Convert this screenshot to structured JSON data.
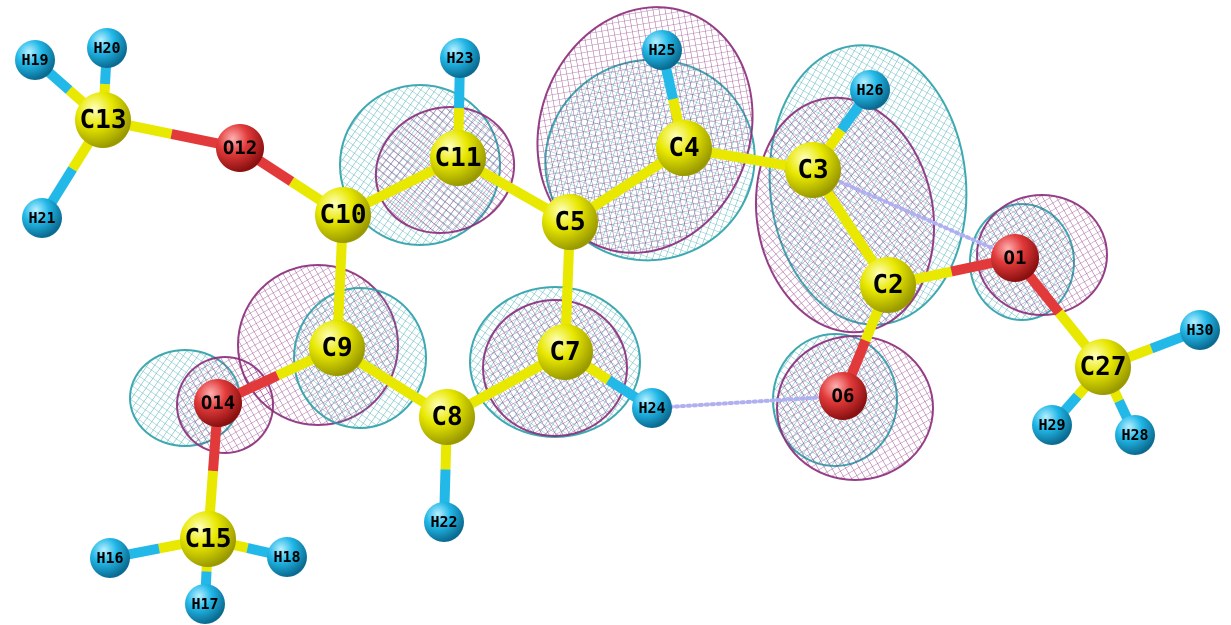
{
  "colors": {
    "background": "#ffffff",
    "carbon": "#e8e800",
    "oxygen": "#e23a3a",
    "hydrogen": "#22b8e8",
    "bond": "#e8e800",
    "lobe_positive": "#2aa0a8",
    "lobe_negative": "#8a2a7a",
    "hbond": "#b0b0f0"
  },
  "atoms": [
    {
      "id": "C13",
      "label": "C13",
      "element": "C"
    },
    {
      "id": "H19",
      "label": "H19",
      "element": "H"
    },
    {
      "id": "H20",
      "label": "H20",
      "element": "H"
    },
    {
      "id": "H21",
      "label": "H21",
      "element": "H"
    },
    {
      "id": "O12",
      "label": "O12",
      "element": "O"
    },
    {
      "id": "C10",
      "label": "C10",
      "element": "C"
    },
    {
      "id": "C11",
      "label": "C11",
      "element": "C"
    },
    {
      "id": "H23",
      "label": "H23",
      "element": "H"
    },
    {
      "id": "C5",
      "label": "C5",
      "element": "C"
    },
    {
      "id": "C4",
      "label": "C4",
      "element": "C"
    },
    {
      "id": "H25",
      "label": "H25",
      "element": "H"
    },
    {
      "id": "C3",
      "label": "C3",
      "element": "C"
    },
    {
      "id": "H26",
      "label": "H26",
      "element": "H"
    },
    {
      "id": "C2",
      "label": "C2",
      "element": "C"
    },
    {
      "id": "O1",
      "label": "O1",
      "element": "O"
    },
    {
      "id": "C27",
      "label": "C27",
      "element": "C"
    },
    {
      "id": "H30",
      "label": "H30",
      "element": "H"
    },
    {
      "id": "H29",
      "label": "H29",
      "element": "H"
    },
    {
      "id": "H28",
      "label": "H28",
      "element": "H"
    },
    {
      "id": "O6",
      "label": "O6",
      "element": "O"
    },
    {
      "id": "C7",
      "label": "C7",
      "element": "C"
    },
    {
      "id": "H24",
      "label": "H24",
      "element": "H"
    },
    {
      "id": "C8",
      "label": "C8",
      "element": "C"
    },
    {
      "id": "H22",
      "label": "H22",
      "element": "H"
    },
    {
      "id": "C9",
      "label": "C9",
      "element": "C"
    },
    {
      "id": "O14",
      "label": "O14",
      "element": "O"
    },
    {
      "id": "C15",
      "label": "C15",
      "element": "C"
    },
    {
      "id": "H16",
      "label": "H16",
      "element": "H"
    },
    {
      "id": "H17",
      "label": "H17",
      "element": "H"
    },
    {
      "id": "H18",
      "label": "H18",
      "element": "H"
    }
  ],
  "bonds": [
    [
      "C13",
      "H19"
    ],
    [
      "C13",
      "H20"
    ],
    [
      "C13",
      "H21"
    ],
    [
      "C13",
      "O12"
    ],
    [
      "O12",
      "C10"
    ],
    [
      "C10",
      "C11"
    ],
    [
      "C11",
      "H23"
    ],
    [
      "C11",
      "C5"
    ],
    [
      "C5",
      "C4"
    ],
    [
      "C4",
      "H25"
    ],
    [
      "C4",
      "C3"
    ],
    [
      "C3",
      "H26"
    ],
    [
      "C3",
      "C2"
    ],
    [
      "C2",
      "O1"
    ],
    [
      "O1",
      "C27"
    ],
    [
      "C27",
      "H30"
    ],
    [
      "C27",
      "H29"
    ],
    [
      "C27",
      "H28"
    ],
    [
      "C2",
      "O6"
    ],
    [
      "C5",
      "C7"
    ],
    [
      "C7",
      "H24"
    ],
    [
      "C7",
      "C8"
    ],
    [
      "C8",
      "H22"
    ],
    [
      "C8",
      "C9"
    ],
    [
      "C9",
      "C10"
    ],
    [
      "C9",
      "O14"
    ],
    [
      "O14",
      "C15"
    ],
    [
      "C15",
      "H16"
    ],
    [
      "C15",
      "H17"
    ],
    [
      "C15",
      "H18"
    ]
  ],
  "hydrogen_bonds": [
    [
      "H24",
      "O6"
    ],
    [
      "C3",
      "O1"
    ]
  ],
  "lobes": [
    {
      "atom": "C11",
      "phase": "positive"
    },
    {
      "atom": "C11",
      "phase": "negative"
    },
    {
      "atom": "C5",
      "phase": "positive"
    },
    {
      "atom": "C4",
      "phase": "negative"
    },
    {
      "atom": "C3",
      "phase": "positive"
    },
    {
      "atom": "C2",
      "phase": "negative"
    },
    {
      "atom": "O1",
      "phase": "positive"
    },
    {
      "atom": "O1",
      "phase": "negative"
    },
    {
      "atom": "C9",
      "phase": "negative"
    },
    {
      "atom": "C9",
      "phase": "positive"
    },
    {
      "atom": "O14",
      "phase": "positive"
    },
    {
      "atom": "O14",
      "phase": "negative"
    },
    {
      "atom": "C7",
      "phase": "positive"
    },
    {
      "atom": "C7",
      "phase": "negative"
    },
    {
      "atom": "O6",
      "phase": "positive"
    },
    {
      "atom": "O6",
      "phase": "negative"
    }
  ]
}
